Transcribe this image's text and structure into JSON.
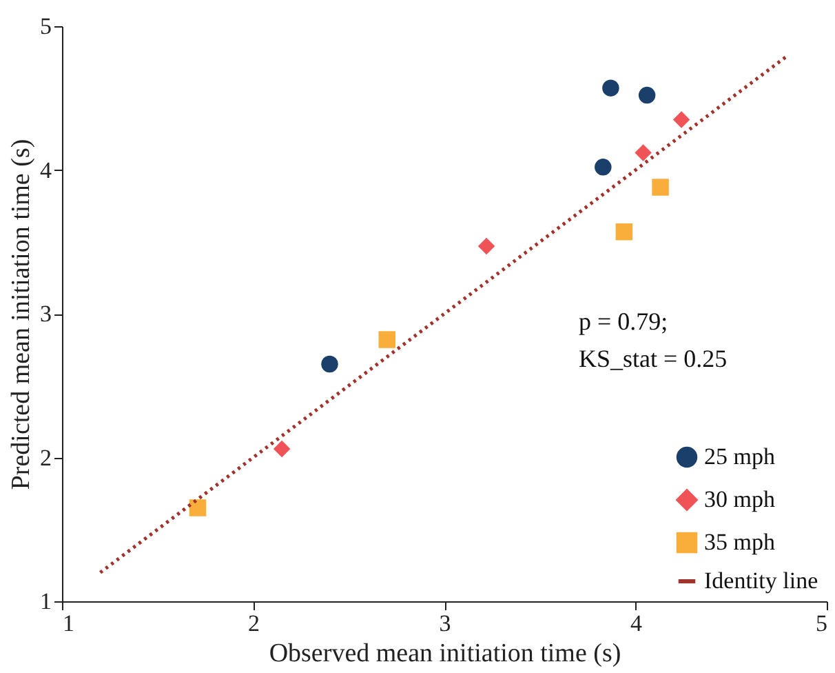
{
  "chart_data": {
    "type": "scatter",
    "xlabel": "Observed mean initiation time (s)",
    "ylabel": "Predicted mean initiation time (s)",
    "xlim": [
      1,
      5
    ],
    "ylim": [
      1,
      5
    ],
    "xticks": [
      1,
      2,
      3,
      4,
      5
    ],
    "yticks": [
      1,
      2,
      3,
      4,
      5
    ],
    "grid": false,
    "legend": "bottom right",
    "annotations": [
      "p = 0.79;",
      "KS_stat = 0.25"
    ],
    "series": [
      {
        "name": "25 mph",
        "color": "#1b3f6b",
        "marker": "circle",
        "x": [
          2.4,
          3.83,
          3.87,
          4.06
        ],
        "values": [
          2.65,
          4.02,
          4.57,
          4.52
        ]
      },
      {
        "name": "30 mph",
        "color": "#ef5257",
        "marker": "diamond",
        "x": [
          2.15,
          3.22,
          4.04,
          4.24
        ],
        "values": [
          2.06,
          3.47,
          4.12,
          4.35
        ]
      },
      {
        "name": "35 mph",
        "color": "#f9ae3c",
        "marker": "square",
        "x": [
          1.71,
          2.7,
          3.94,
          4.13
        ],
        "values": [
          1.65,
          2.82,
          3.57,
          3.88
        ]
      },
      {
        "name": "Identity line",
        "type": "line",
        "color": "#a0332b",
        "line_style": "dotted",
        "x": [
          1.2,
          4.8
        ],
        "values": [
          1.2,
          4.8
        ]
      }
    ]
  }
}
